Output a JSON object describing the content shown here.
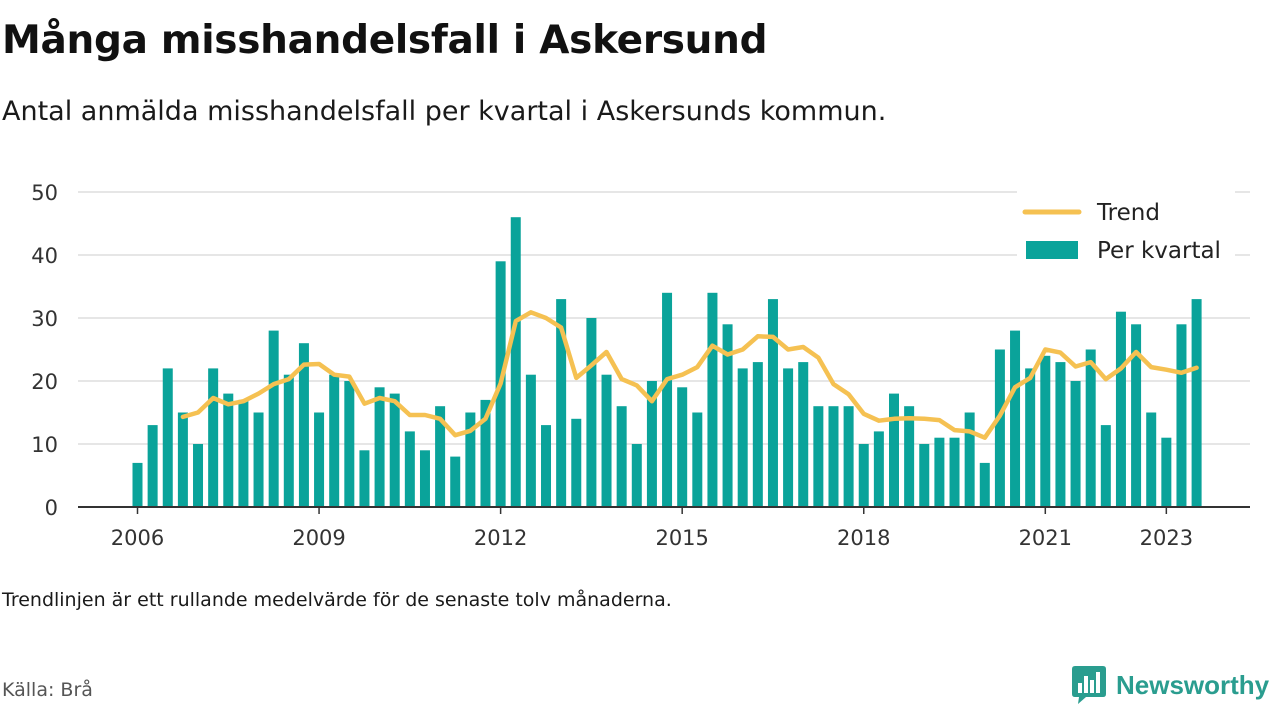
{
  "header": {
    "title": "Många misshandelsfall i Askersund",
    "subtitle": "Antal anmälda misshandelsfall per kvartal i Askersunds kommun."
  },
  "footer": {
    "note": "Trendlinjen är ett rullande medelvärde för de senaste tolv månaderna.",
    "source": "Källa: Brå",
    "brand": "Newsworthy"
  },
  "colors": {
    "bar": "#0aa39a",
    "trend": "#f5c152",
    "grid": "#dddddd",
    "axis": "#333333",
    "brand": "#2a9d8f"
  },
  "chart_data": {
    "type": "bar",
    "start_year": 2006,
    "ylim": [
      0,
      50
    ],
    "yticks": [
      0,
      10,
      20,
      30,
      40,
      50
    ],
    "xticks": [
      "2006",
      "2009",
      "2012",
      "2015",
      "2018",
      "2021",
      "2023"
    ],
    "grid": true,
    "legend": {
      "placement": "top-right"
    },
    "series": [
      {
        "name": "Per kvartal",
        "kind": "bar",
        "values": [
          7,
          13,
          22,
          15,
          10,
          22,
          18,
          17,
          15,
          28,
          21,
          26,
          15,
          21,
          20,
          9,
          19,
          18,
          12,
          9,
          16,
          8,
          15,
          17,
          39,
          46,
          21,
          13,
          33,
          14,
          30,
          21,
          16,
          10,
          20,
          34,
          19,
          15,
          34,
          29,
          22,
          23,
          33,
          22,
          23,
          16,
          16,
          16,
          10,
          12,
          18,
          16,
          10,
          11,
          11,
          15,
          7,
          25,
          28,
          22,
          24,
          23,
          20,
          25,
          13,
          31,
          29,
          15,
          11,
          29,
          33
        ]
      },
      {
        "name": "Trend",
        "kind": "line",
        "start_index": 3,
        "values": [
          14.3,
          15,
          17.3,
          16.3,
          16.8,
          18,
          19.5,
          20.3,
          22.6,
          22.7,
          21,
          20.7,
          16.4,
          17.3,
          16.8,
          14.6,
          14.6,
          14,
          11.4,
          12.1,
          14,
          19.6,
          29.5,
          30.9,
          30,
          28.5,
          20.5,
          22.5,
          24.6,
          20.3,
          19.3,
          16.8,
          20.3,
          21,
          22.2,
          25.6,
          24.2,
          25,
          27.1,
          27,
          25,
          25.4,
          23.7,
          19.5,
          17.9,
          14.8,
          13.7,
          14,
          14.1,
          14,
          13.8,
          12.2,
          12,
          11,
          14.5,
          19,
          20.5,
          25,
          24.5,
          22.3,
          23,
          20.3,
          22,
          24.6,
          22.2,
          21.8,
          21.3,
          22.1
        ]
      }
    ]
  }
}
